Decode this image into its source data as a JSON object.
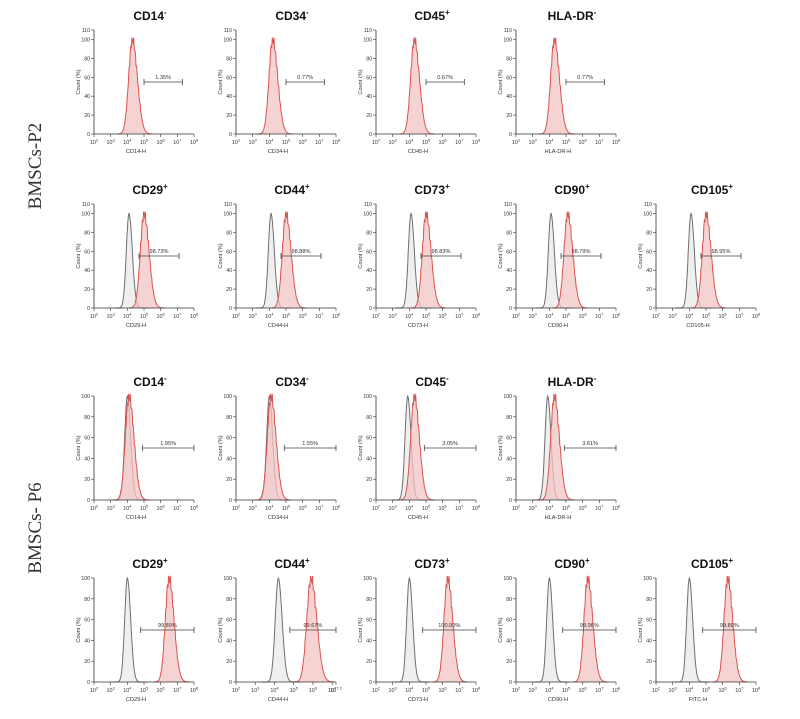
{
  "colors": {
    "marker": "#d9534f",
    "marker_fill": "#f2c4c4",
    "isotype": "#6f6f6f",
    "isotype_fill": "#e8e8e8",
    "axis": "#333333"
  },
  "row_labels": {
    "p2": "BMSCs-P2",
    "p6": "BMSCs- P6"
  },
  "chart_data": [
    {
      "id": "p2-cd14",
      "type": "histogram",
      "title": "CD14",
      "sign": "-",
      "xlabel": "CD14-H",
      "ylabel": "Count (%)",
      "xlog_range": [
        2,
        8
      ],
      "ylim": [
        0,
        110
      ],
      "yticks": [
        0,
        20,
        40,
        60,
        80,
        100,
        110
      ],
      "gate_value": "1.35%",
      "gate_range": [
        5.0,
        7.3
      ],
      "series": [
        {
          "name": "CD14",
          "role": "marker",
          "peak_log": 4.3
        }
      ]
    },
    {
      "id": "p2-cd34",
      "type": "histogram",
      "title": "CD34",
      "sign": "-",
      "xlabel": "CD34-H",
      "ylabel": "Count (%)",
      "xlog_range": [
        2,
        8
      ],
      "ylim": [
        0,
        110
      ],
      "yticks": [
        0,
        20,
        40,
        60,
        80,
        100,
        110
      ],
      "gate_value": "0.77%",
      "gate_range": [
        5.0,
        7.3
      ],
      "series": [
        {
          "name": "CD34",
          "role": "marker",
          "peak_log": 4.2
        }
      ]
    },
    {
      "id": "p2-cd45",
      "type": "histogram",
      "title": "CD45",
      "sign": "+",
      "xlabel": "CD45-H",
      "ylabel": "Count (%)",
      "xlog_range": [
        2,
        8
      ],
      "ylim": [
        0,
        110
      ],
      "yticks": [
        0,
        20,
        40,
        60,
        80,
        100,
        110
      ],
      "gate_value": "0.67%",
      "gate_range": [
        5.0,
        7.3
      ],
      "series": [
        {
          "name": "CD45",
          "role": "marker",
          "peak_log": 4.3
        }
      ]
    },
    {
      "id": "p2-hladr",
      "type": "histogram",
      "title": "HLA-DR",
      "sign": "-",
      "xlabel": "HLA-DR-H",
      "ylabel": "Count (%)",
      "xlog_range": [
        2,
        8
      ],
      "ylim": [
        0,
        110
      ],
      "yticks": [
        0,
        20,
        40,
        60,
        80,
        100,
        110
      ],
      "gate_value": "0.77%",
      "gate_range": [
        5.0,
        7.3
      ],
      "series": [
        {
          "name": "HLA-DR",
          "role": "marker",
          "peak_log": 4.3
        }
      ]
    },
    {
      "id": "p2-cd29",
      "type": "histogram",
      "title": "CD29",
      "sign": "+",
      "xlabel": "CD29-H",
      "ylabel": "Count (%)",
      "xlog_range": [
        2,
        8
      ],
      "ylim": [
        0,
        110
      ],
      "yticks": [
        0,
        20,
        40,
        60,
        80,
        100,
        110
      ],
      "gate_value": "98.73%",
      "gate_range": [
        4.7,
        7.1
      ],
      "series": [
        {
          "name": "Isotype",
          "role": "isotype",
          "peak_log": 4.1
        },
        {
          "name": "CD29",
          "role": "marker",
          "peak_log": 5.0
        }
      ]
    },
    {
      "id": "p2-cd44",
      "type": "histogram",
      "title": "CD44",
      "sign": "+",
      "xlabel": "CD44-H",
      "ylabel": "Count (%)",
      "xlog_range": [
        2,
        8
      ],
      "ylim": [
        0,
        110
      ],
      "yticks": [
        0,
        20,
        40,
        60,
        80,
        100,
        110
      ],
      "gate_value": "98.88%",
      "gate_range": [
        4.7,
        7.1
      ],
      "series": [
        {
          "name": "Isotype",
          "role": "isotype",
          "peak_log": 4.1
        },
        {
          "name": "CD44",
          "role": "marker",
          "peak_log": 5.0
        }
      ]
    },
    {
      "id": "p2-cd73",
      "type": "histogram",
      "title": "CD73",
      "sign": "+",
      "xlabel": "CD73-H",
      "ylabel": "Count (%)",
      "xlog_range": [
        2,
        8
      ],
      "ylim": [
        0,
        110
      ],
      "yticks": [
        0,
        20,
        40,
        60,
        80,
        100,
        110
      ],
      "gate_value": "98.83%",
      "gate_range": [
        4.7,
        7.1
      ],
      "series": [
        {
          "name": "Isotype",
          "role": "isotype",
          "peak_log": 4.1
        },
        {
          "name": "CD73",
          "role": "marker",
          "peak_log": 5.0
        }
      ]
    },
    {
      "id": "p2-cd90",
      "type": "histogram",
      "title": "CD90",
      "sign": "+",
      "xlabel": "CD90-H",
      "ylabel": "Count (%)",
      "xlog_range": [
        2,
        8
      ],
      "ylim": [
        0,
        110
      ],
      "yticks": [
        0,
        20,
        40,
        60,
        80,
        100,
        110
      ],
      "gate_value": "98.79%",
      "gate_range": [
        4.7,
        7.1
      ],
      "series": [
        {
          "name": "Isotype",
          "role": "isotype",
          "peak_log": 4.1
        },
        {
          "name": "CD90",
          "role": "marker",
          "peak_log": 5.1
        }
      ]
    },
    {
      "id": "p2-cd105",
      "type": "histogram",
      "title": "CD105",
      "sign": "+",
      "xlabel": "CD105-H",
      "ylabel": "Count (%)",
      "xlog_range": [
        2,
        8
      ],
      "ylim": [
        0,
        110
      ],
      "yticks": [
        0,
        20,
        40,
        60,
        80,
        100,
        110
      ],
      "gate_value": "98.95%",
      "gate_range": [
        4.7,
        7.1
      ],
      "series": [
        {
          "name": "Isotype",
          "role": "isotype",
          "peak_log": 4.1
        },
        {
          "name": "CD105",
          "role": "marker",
          "peak_log": 5.0
        }
      ]
    },
    {
      "id": "p6-cd14",
      "type": "histogram",
      "title": "CD14",
      "sign": "-",
      "xlabel": "CD14-H",
      "ylabel": "Count (%)",
      "xlog_range": [
        2,
        8
      ],
      "ylim": [
        0,
        100
      ],
      "yticks": [
        0,
        20,
        40,
        60,
        80,
        100
      ],
      "gate_value": "1.95%",
      "gate_range": [
        4.9,
        8.0
      ],
      "series": [
        {
          "name": "Isotype",
          "role": "isotype",
          "peak_log": 4.0
        },
        {
          "name": "CD14",
          "role": "marker",
          "peak_log": 4.1
        }
      ]
    },
    {
      "id": "p6-cd34",
      "type": "histogram",
      "title": "CD34",
      "sign": "-",
      "xlabel": "CD34-H",
      "ylabel": "Count (%)",
      "xlog_range": [
        2,
        8
      ],
      "ylim": [
        0,
        100
      ],
      "yticks": [
        0,
        20,
        40,
        60,
        80,
        100
      ],
      "gate_value": "1.55%",
      "gate_range": [
        4.9,
        8.0
      ],
      "series": [
        {
          "name": "Isotype",
          "role": "isotype",
          "peak_log": 4.0
        },
        {
          "name": "CD34",
          "role": "marker",
          "peak_log": 4.1
        }
      ]
    },
    {
      "id": "p6-cd45",
      "type": "histogram",
      "title": "CD45",
      "sign": "-",
      "xlabel": "CD45-H",
      "ylabel": "Count (%)",
      "xlog_range": [
        2,
        8
      ],
      "ylim": [
        0,
        100
      ],
      "yticks": [
        0,
        20,
        40,
        60,
        80,
        100
      ],
      "gate_value": "3.05%",
      "gate_range": [
        4.9,
        8.0
      ],
      "series": [
        {
          "name": "Isotype",
          "role": "isotype",
          "peak_log": 3.9
        },
        {
          "name": "CD45",
          "role": "marker",
          "peak_log": 4.3
        }
      ]
    },
    {
      "id": "p6-hladr",
      "type": "histogram",
      "title": "HLA-DR",
      "sign": "-",
      "xlabel": "HLA-DR-H",
      "ylabel": "Count (%)",
      "xlog_range": [
        2,
        8
      ],
      "ylim": [
        0,
        100
      ],
      "yticks": [
        0,
        20,
        40,
        60,
        80,
        100
      ],
      "gate_value": "3.61%",
      "gate_range": [
        4.9,
        8.0
      ],
      "series": [
        {
          "name": "Isotype",
          "role": "isotype",
          "peak_log": 3.9
        },
        {
          "name": "HLA-DR",
          "role": "marker",
          "peak_log": 4.3
        }
      ]
    },
    {
      "id": "p6-cd29",
      "type": "histogram",
      "title": "CD29",
      "sign": "+",
      "xlabel": "CD29-H",
      "ylabel": "Count (%)",
      "xlog_range": [
        2,
        8
      ],
      "ylim": [
        0,
        100
      ],
      "yticks": [
        0,
        20,
        40,
        60,
        80,
        100
      ],
      "gate_value": "99.89%",
      "gate_range": [
        4.8,
        8.0
      ],
      "series": [
        {
          "name": "Isotype",
          "role": "isotype",
          "peak_log": 4.0
        },
        {
          "name": "CD29",
          "role": "marker",
          "peak_log": 6.5
        }
      ]
    },
    {
      "id": "p6-cd44",
      "type": "histogram",
      "title": "CD44",
      "sign": "+",
      "xlabel": "CD44-H",
      "ylabel": "Count (%)",
      "xlog_range": [
        2,
        7.2
      ],
      "ylim": [
        0,
        100
      ],
      "yticks": [
        0,
        20,
        40,
        60,
        80,
        100
      ],
      "xtick_labels": [
        "10^2",
        "10^3",
        "10^4",
        "10^5",
        "10^6",
        "10^7",
        "10^7.2"
      ],
      "gate_value": "99.67%",
      "gate_range": [
        4.8,
        7.2
      ],
      "series": [
        {
          "name": "Isotype",
          "role": "isotype",
          "peak_log": 4.2
        },
        {
          "name": "CD44",
          "role": "marker",
          "peak_log": 5.9
        }
      ]
    },
    {
      "id": "p6-cd73",
      "type": "histogram",
      "title": "CD73",
      "sign": "+",
      "xlabel": "CD73-H",
      "ylabel": "Count (%)",
      "xlog_range": [
        2,
        8
      ],
      "ylim": [
        0,
        100
      ],
      "yticks": [
        0,
        20,
        40,
        60,
        80,
        100
      ],
      "gate_value": "100.00%",
      "gate_range": [
        4.8,
        8.0
      ],
      "series": [
        {
          "name": "Isotype",
          "role": "isotype",
          "peak_log": 4.0
        },
        {
          "name": "CD73",
          "role": "marker",
          "peak_log": 6.3
        }
      ]
    },
    {
      "id": "p6-cd90",
      "type": "histogram",
      "title": "CD90",
      "sign": "+",
      "xlabel": "CD90-H",
      "ylabel": "Count (%)",
      "xlog_range": [
        2,
        8
      ],
      "ylim": [
        0,
        100
      ],
      "yticks": [
        0,
        20,
        40,
        60,
        80,
        100
      ],
      "gate_value": "99.96%",
      "gate_range": [
        4.8,
        8.0
      ],
      "series": [
        {
          "name": "Isotype",
          "role": "isotype",
          "peak_log": 4.0
        },
        {
          "name": "CD90",
          "role": "marker",
          "peak_log": 6.3
        }
      ]
    },
    {
      "id": "p6-cd105",
      "type": "histogram",
      "title": "CD105",
      "sign": "+",
      "xlabel": "FITC-H",
      "ylabel": "Count (%)",
      "xlog_range": [
        2,
        8
      ],
      "ylim": [
        0,
        100
      ],
      "yticks": [
        0,
        20,
        40,
        60,
        80,
        100
      ],
      "gate_value": "99.89%",
      "gate_range": [
        4.8,
        8.0
      ],
      "series": [
        {
          "name": "Isotype",
          "role": "isotype",
          "peak_log": 4.0
        },
        {
          "name": "CD105",
          "role": "marker",
          "peak_log": 6.3
        }
      ]
    }
  ]
}
